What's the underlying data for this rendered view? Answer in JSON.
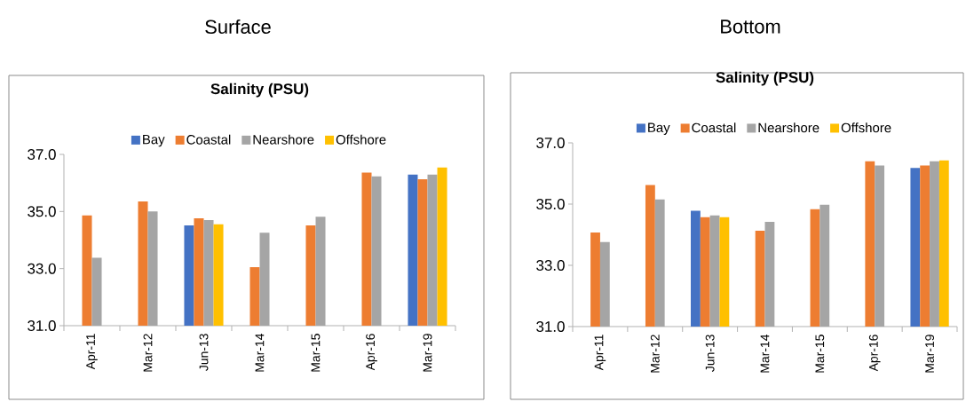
{
  "chart_data": [
    {
      "type": "bar",
      "title": "Surface",
      "subtitle": "Salinity (PSU)",
      "categories": [
        "Apr-11",
        "Mar-12",
        "Jun-13",
        "Mar-14",
        "Mar-15",
        "Apr-16",
        "Mar-19"
      ],
      "series": [
        {
          "name": "Bay",
          "color": "#4472c4",
          "values": [
            null,
            null,
            34.51,
            null,
            null,
            null,
            36.29
          ]
        },
        {
          "name": "Coastal",
          "color": "#ed7d31",
          "values": [
            34.86,
            35.35,
            34.76,
            33.05,
            34.51,
            36.36,
            36.13
          ]
        },
        {
          "name": "Nearshore",
          "color": "#a5a5a5",
          "values": [
            33.38,
            35.0,
            34.7,
            34.26,
            34.82,
            36.23,
            36.29
          ]
        },
        {
          "name": "Offshore",
          "color": "#ffc000",
          "values": [
            null,
            null,
            34.55,
            null,
            null,
            null,
            36.54
          ]
        }
      ],
      "ylim": [
        31,
        37
      ],
      "yticks": [
        {
          "value": 31,
          "label": "31.0"
        },
        {
          "value": 33,
          "label": "33.0"
        },
        {
          "value": 35,
          "label": "35.0"
        },
        {
          "value": 37,
          "label": "37.0"
        }
      ],
      "legend": "top"
    },
    {
      "type": "bar",
      "title": "Bottom",
      "subtitle": "Salinity (PSU)",
      "categories": [
        "Apr-11",
        "Mar-12",
        "Jun-13",
        "Mar-14",
        "Mar-15",
        "Apr-16",
        "Mar-19"
      ],
      "series": [
        {
          "name": "Bay",
          "color": "#4472c4",
          "values": [
            null,
            null,
            34.78,
            null,
            null,
            null,
            36.18
          ]
        },
        {
          "name": "Coastal",
          "color": "#ed7d31",
          "values": [
            34.07,
            35.62,
            34.57,
            34.13,
            34.83,
            36.4,
            36.26
          ]
        },
        {
          "name": "Nearshore",
          "color": "#a5a5a5",
          "values": [
            33.76,
            35.15,
            34.63,
            34.42,
            34.98,
            36.26,
            36.4
          ]
        },
        {
          "name": "Offshore",
          "color": "#ffc000",
          "values": [
            null,
            null,
            34.57,
            null,
            null,
            null,
            36.43
          ]
        }
      ],
      "ylim": [
        31,
        37
      ],
      "yticks": [
        {
          "value": 31,
          "label": "31.0"
        },
        {
          "value": 33,
          "label": "33.0"
        },
        {
          "value": 35,
          "label": "35.0"
        },
        {
          "value": 37,
          "label": "37.0"
        }
      ],
      "legend": "top"
    }
  ]
}
